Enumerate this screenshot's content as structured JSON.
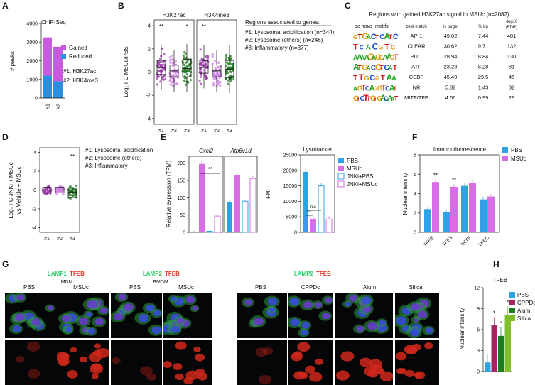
{
  "panel_letters": [
    "A",
    "B",
    "C",
    "D",
    "E",
    "F",
    "G",
    "H"
  ],
  "colors": {
    "gained": "#c95ae0",
    "reduced": "#2b8fe0",
    "set1": "#9a3aa8",
    "set2": "#cf82e6",
    "set3": "#1f7a1f",
    "pbs": "#2ba3e6",
    "msuc": "#d76ee6",
    "cppdc": "#a3245f",
    "alum": "#1e7d1e",
    "silica": "#7fbf2e"
  },
  "legends": {
    "regions_title": "Regions associated to genes:",
    "regions": [
      "#1: Lysosomal acidification (n=344)",
      "#2: Lysosome (others) (n=246)",
      "#3: Inflammatory (n=377)"
    ],
    "regions_short": [
      "#1: Lysosomal acidification",
      "#2: Lysosome (others)",
      "#3: Inflammatory"
    ]
  },
  "panelA": {
    "subtitle": "ChIP-Seq",
    "legend": [
      "Gained",
      "Reduced"
    ],
    "notes": [
      "#1: H3K27ac",
      "#2: H3K4me3"
    ],
    "ylabel": "# peaks",
    "yticks": [
      "0",
      "1000",
      "2000",
      "3000",
      "4000"
    ],
    "categories": [
      "#1",
      "#2"
    ]
  },
  "panelB": {
    "ylabel": "Log₂ FC MSUc/PBS",
    "facets": [
      "H3K27ac",
      "H3K4me3"
    ],
    "yticks": [
      "4",
      "2",
      "0",
      "-2",
      "-4"
    ],
    "categories": [
      "#1",
      "#2",
      "#3"
    ],
    "sig": [
      "**",
      "*",
      "**"
    ]
  },
  "panelC": {
    "title": "Regions with gained H3K27ac signal in MSUc (n=2082)",
    "col_headers": [
      "de novo motifs",
      "best match",
      "% target",
      "% bg",
      "-log10",
      "(FDR)"
    ],
    "rows": [
      {
        "match": "AP-1",
        "target": "49.02",
        "bg": "7.44",
        "fdr": "481",
        "logo": "GTGACTCATC"
      },
      {
        "match": "CLEAR",
        "target": "30.62",
        "bg": "9.71",
        "fdr": "132",
        "logo": "TCACGTG"
      },
      {
        "match": "PU.1",
        "target": "28.94",
        "bg": "8.84",
        "fdr": "130",
        "logo": "AAAAGAGGAAGT"
      },
      {
        "match": "ATF",
        "target": "23.28",
        "bg": "8.28",
        "fdr": "81",
        "logo": "ATGACGTCAT"
      },
      {
        "match": "CEBP",
        "target": "45.49",
        "bg": "29.5",
        "fdr": "45",
        "logo": "TTGCGTAA"
      },
      {
        "match": "NR",
        "target": "5.89",
        "bg": "1.43",
        "fdr": "32",
        "logo": "AGTCAGGTCAT"
      },
      {
        "match": "MITF/TFE",
        "target": "4.66",
        "bg": "0.99",
        "fdr": "29",
        "logo": "GTCTTGTGACAAT"
      }
    ]
  },
  "panelD": {
    "ylabel": [
      "Log₂ FC JNKi + MSUc",
      "vs Vehicle + MSUc"
    ],
    "yticks": [
      "4",
      "2",
      "0",
      "-2",
      "-4"
    ],
    "categories": [
      "#1",
      "#2",
      "#3"
    ],
    "sig": "**"
  },
  "panelE": {
    "ylabel_left": "Relative expression (TPM)",
    "ylabel_right": "FMI",
    "gene1": "Cxcl2",
    "gene2": "Atp6v1d",
    "assay": "Lysotracker",
    "yticks_left": [
      "0",
      "50",
      "100",
      "150",
      "200"
    ],
    "yticks_right": [
      "0",
      "5000",
      "10000",
      "15000",
      "20000",
      "25000"
    ],
    "legend": [
      "PBS",
      "MSUc",
      "JNKi+PBS",
      "JNKi+MSUc"
    ],
    "sig_left": "**",
    "sig_right": [
      "n.s",
      "**"
    ]
  },
  "panelF": {
    "title": "Immunofluorescence",
    "ylabel": "Nuclear intensity",
    "yticks": [
      "0",
      "2",
      "4",
      "6",
      "8"
    ],
    "legend": [
      "PBS",
      "MSUc"
    ],
    "categories": [
      "TFEB",
      "TFE3",
      "MITF",
      "TFEC"
    ],
    "sig": [
      "**",
      "**",
      "",
      ""
    ]
  },
  "panelG": {
    "block1": {
      "stain1": "LAMP1",
      "stain2": "TFEB",
      "cell": "MDM",
      "conditions": [
        "PBS",
        "MSUc"
      ]
    },
    "block2": {
      "stain1": "LAMP2",
      "stain2": "TFEB",
      "cell": "BMDM",
      "conditions": [
        "PBS",
        "MSUc"
      ]
    },
    "block3": {
      "stain1": "LAMP2",
      "stain2": "TFEB",
      "conditions": [
        "PBS",
        "CPPDc",
        "Alum",
        "Silica"
      ]
    }
  },
  "panelH": {
    "title": "TFEB",
    "ylabel": "Nuclear intensity",
    "yticks": [
      "0",
      "3",
      "6",
      "9",
      "12"
    ],
    "legend": [
      "PBS",
      "CPPDc",
      "Alum",
      "Silica"
    ],
    "sig": [
      "",
      "*",
      "*",
      "*"
    ]
  },
  "chart_data": [
    {
      "panel": "A",
      "type": "bar",
      "categories": [
        "#1",
        "#2"
      ],
      "series": [
        {
          "name": "Reduced",
          "values": [
            1200,
            900
          ]
        },
        {
          "name": "Gained",
          "values": [
            2050,
            1850
          ]
        }
      ],
      "ylim": [
        0,
        4000
      ]
    },
    {
      "panel": "B",
      "type": "scatter",
      "facets": [
        "H3K27ac",
        "H3K4me3"
      ],
      "categories": [
        "#1",
        "#2",
        "#3"
      ],
      "ylim": [
        -4,
        4
      ],
      "medians": [
        [
          0.4,
          0.1,
          0.3
        ],
        [
          0.4,
          0.1,
          0.25
        ]
      ],
      "q1": [
        [
          -0.2,
          -0.4,
          -0.4
        ],
        [
          -0.1,
          -0.4,
          -0.5
        ]
      ],
      "q3": [
        [
          1.0,
          0.6,
          1.1
        ],
        [
          1.0,
          0.6,
          1.0
        ]
      ]
    },
    {
      "panel": "D",
      "type": "scatter",
      "categories": [
        "#1",
        "#2",
        "#3"
      ],
      "ylim": [
        -4,
        4
      ],
      "medians": [
        0.0,
        0.0,
        -0.2
      ],
      "q1": [
        -0.3,
        -0.3,
        -0.8
      ],
      "q3": [
        0.3,
        0.3,
        0.2
      ]
    },
    {
      "panel": "E",
      "type": "bar",
      "groups": [
        "Cxcl2",
        "Atp6v1d"
      ],
      "series": [
        {
          "name": "PBS",
          "values": [
            2,
            87
          ]
        },
        {
          "name": "MSUc",
          "values": [
            198,
            165
          ]
        },
        {
          "name": "JNKi+PBS",
          "values": [
            3,
            90
          ]
        },
        {
          "name": "JNKi+MSUc",
          "values": [
            47,
            156
          ]
        }
      ],
      "ylim": [
        0,
        220
      ]
    },
    {
      "panel": "E-Lysotracker",
      "type": "bar",
      "series": [
        {
          "name": "PBS",
          "values": [
            19500
          ]
        },
        {
          "name": "MSUc",
          "values": [
            4200
          ]
        },
        {
          "name": "JNKi+PBS",
          "values": [
            15000
          ]
        },
        {
          "name": "JNKi+MSUc",
          "values": [
            4300
          ]
        }
      ],
      "ylim": [
        0,
        25000
      ]
    },
    {
      "panel": "F",
      "type": "bar",
      "categories": [
        "TFEB",
        "TFE3",
        "MITF",
        "TFEC"
      ],
      "series": [
        {
          "name": "PBS",
          "values": [
            2.4,
            2.1,
            4.8,
            3.4
          ]
        },
        {
          "name": "MSUc",
          "values": [
            5.2,
            4.7,
            5.1,
            3.7
          ]
        }
      ],
      "ylim": [
        0,
        8
      ]
    },
    {
      "panel": "H",
      "type": "bar",
      "categories": [
        "PBS",
        "CPPDc",
        "Alum",
        "Silica"
      ],
      "values": [
        1.3,
        6.6,
        5.1,
        8.1
      ],
      "ylim": [
        0,
        12
      ]
    }
  ]
}
